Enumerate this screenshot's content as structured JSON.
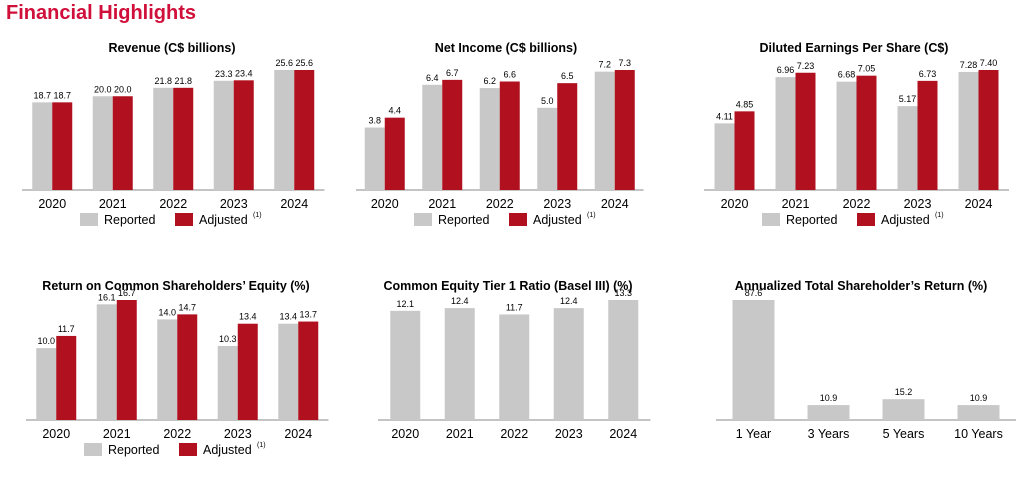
{
  "page_title": "Financial Highlights",
  "colors": {
    "title": "#d0103a",
    "reported": "#c8c8c8",
    "adjusted": "#b1101f",
    "axis": "#8a8a8a"
  },
  "legend_labels": {
    "reported": "Reported",
    "adjusted": "Adjusted",
    "footnote": "(1)"
  },
  "chart_data": [
    {
      "type": "bar",
      "title": "Revenue (C$ billions)",
      "categories": [
        "2020",
        "2021",
        "2022",
        "2023",
        "2024"
      ],
      "series": [
        {
          "name": "Reported",
          "values": [
            18.7,
            20.0,
            21.8,
            23.3,
            25.6
          ],
          "labels": [
            "18.7",
            "20.0",
            "21.8",
            "23.3",
            "25.6"
          ]
        },
        {
          "name": "Adjusted",
          "values": [
            18.7,
            20.0,
            21.8,
            23.4,
            25.6
          ],
          "labels": [
            "18.7",
            "20.0",
            "21.8",
            "23.4",
            "25.6"
          ]
        }
      ],
      "legend": true
    },
    {
      "type": "bar",
      "title": "Net Income (C$ billions)",
      "categories": [
        "2020",
        "2021",
        "2022",
        "2023",
        "2024"
      ],
      "series": [
        {
          "name": "Reported",
          "values": [
            3.8,
            6.4,
            6.2,
            5.0,
            7.2
          ],
          "labels": [
            "3.8",
            "6.4",
            "6.2",
            "5.0",
            "7.2"
          ]
        },
        {
          "name": "Adjusted",
          "values": [
            4.4,
            6.7,
            6.6,
            6.5,
            7.3
          ],
          "labels": [
            "4.4",
            "6.7",
            "6.6",
            "6.5",
            "7.3"
          ]
        }
      ],
      "legend": true
    },
    {
      "type": "bar",
      "title": "Diluted Earnings Per Share (C$)",
      "categories": [
        "2020",
        "2021",
        "2022",
        "2023",
        "2024"
      ],
      "series": [
        {
          "name": "Reported",
          "values": [
            4.11,
            6.96,
            6.68,
            5.17,
            7.28
          ],
          "labels": [
            "4.11",
            "6.96",
            "6.68",
            "5.17",
            "7.28"
          ]
        },
        {
          "name": "Adjusted",
          "values": [
            4.85,
            7.23,
            7.05,
            6.73,
            7.4
          ],
          "labels": [
            "4.85",
            "7.23",
            "7.05",
            "6.73",
            "7.40"
          ]
        }
      ],
      "legend": true
    },
    {
      "type": "bar",
      "title": "Return on Common Shareholders’ Equity (%)",
      "categories": [
        "2020",
        "2021",
        "2022",
        "2023",
        "2024"
      ],
      "series": [
        {
          "name": "Reported",
          "values": [
            10.0,
            16.1,
            14.0,
            10.3,
            13.4
          ],
          "labels": [
            "10.0",
            "16.1",
            "14.0",
            "10.3",
            "13.4"
          ]
        },
        {
          "name": "Adjusted",
          "values": [
            11.7,
            16.7,
            14.7,
            13.4,
            13.7
          ],
          "labels": [
            "11.7",
            "16.7",
            "14.7",
            "13.4",
            "13.7"
          ]
        }
      ],
      "legend": true
    },
    {
      "type": "bar",
      "title": "Common Equity Tier 1 Ratio (Basel III) (%)",
      "categories": [
        "2020",
        "2021",
        "2022",
        "2023",
        "2024"
      ],
      "series": [
        {
          "values": [
            12.1,
            12.4,
            11.7,
            12.4,
            13.3
          ],
          "labels": [
            "12.1",
            "12.4",
            "11.7",
            "12.4",
            "13.3"
          ]
        }
      ],
      "legend": false
    },
    {
      "type": "bar",
      "title": "Annualized Total Shareholder’s Return (%)",
      "categories": [
        "1 Year",
        "3 Years",
        "5 Years",
        "10 Years"
      ],
      "series": [
        {
          "values": [
            87.6,
            10.9,
            15.2,
            10.9
          ],
          "labels": [
            "87.6",
            "10.9",
            "15.2",
            "10.9"
          ]
        }
      ],
      "legend": false
    }
  ]
}
